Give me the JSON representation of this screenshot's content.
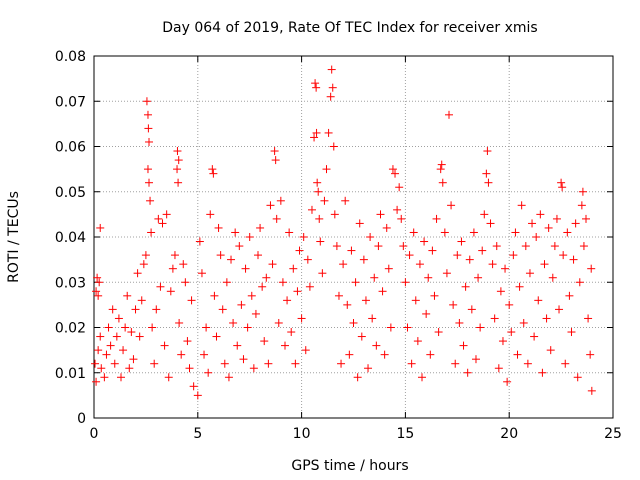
{
  "chart_data": {
    "type": "scatter",
    "title": "Day 064 of 2019, Rate Of TEC Index for receiver xmis",
    "xlabel": "GPS time / hours",
    "ylabel": "ROTI / TECUs",
    "xlim": [
      0,
      25
    ],
    "ylim": [
      0,
      0.08
    ],
    "xticks": [
      0,
      5,
      10,
      15,
      20,
      25
    ],
    "yticks": [
      0,
      0.01,
      0.02,
      0.03,
      0.04,
      0.05,
      0.06,
      0.07,
      0.08
    ],
    "xtick_labels": [
      "0",
      "5",
      "10",
      "15",
      "20",
      "25"
    ],
    "ytick_labels": [
      "0",
      "0.01",
      "0.02",
      "0.03",
      "0.04",
      "0.05",
      "0.06",
      "0.07",
      "0.08"
    ],
    "grid": true,
    "marker": "+",
    "color": "#ff0000",
    "series": [
      {
        "name": "ROTI",
        "points": [
          [
            0.05,
            0.012
          ],
          [
            0.1,
            0.028
          ],
          [
            0.15,
            0.031
          ],
          [
            0.2,
            0.027
          ],
          [
            0.25,
            0.03
          ],
          [
            0.3,
            0.042
          ],
          [
            0.1,
            0.008
          ],
          [
            0.2,
            0.015
          ],
          [
            0.3,
            0.018
          ],
          [
            0.35,
            0.011
          ],
          [
            0.5,
            0.009
          ],
          [
            0.6,
            0.014
          ],
          [
            0.7,
            0.02
          ],
          [
            0.8,
            0.016
          ],
          [
            0.9,
            0.024
          ],
          [
            1.0,
            0.012
          ],
          [
            1.1,
            0.018
          ],
          [
            1.2,
            0.022
          ],
          [
            1.3,
            0.009
          ],
          [
            1.4,
            0.015
          ],
          [
            1.5,
            0.02
          ],
          [
            1.6,
            0.027
          ],
          [
            1.7,
            0.011
          ],
          [
            1.8,
            0.019
          ],
          [
            1.9,
            0.013
          ],
          [
            2.0,
            0.024
          ],
          [
            2.1,
            0.032
          ],
          [
            2.2,
            0.018
          ],
          [
            2.3,
            0.026
          ],
          [
            2.4,
            0.034
          ],
          [
            2.5,
            0.036
          ],
          [
            2.55,
            0.07
          ],
          [
            2.6,
            0.067
          ],
          [
            2.62,
            0.064
          ],
          [
            2.65,
            0.061
          ],
          [
            2.6,
            0.055
          ],
          [
            2.65,
            0.052
          ],
          [
            2.7,
            0.048
          ],
          [
            2.75,
            0.041
          ],
          [
            2.8,
            0.02
          ],
          [
            2.9,
            0.012
          ],
          [
            3.0,
            0.024
          ],
          [
            3.1,
            0.044
          ],
          [
            3.2,
            0.029
          ],
          [
            3.3,
            0.043
          ],
          [
            3.4,
            0.016
          ],
          [
            3.5,
            0.045
          ],
          [
            3.6,
            0.009
          ],
          [
            3.7,
            0.028
          ],
          [
            3.8,
            0.033
          ],
          [
            3.9,
            0.036
          ],
          [
            4.0,
            0.055
          ],
          [
            4.02,
            0.059
          ],
          [
            4.05,
            0.052
          ],
          [
            4.08,
            0.057
          ],
          [
            4.1,
            0.021
          ],
          [
            4.2,
            0.014
          ],
          [
            4.3,
            0.034
          ],
          [
            4.4,
            0.03
          ],
          [
            4.5,
            0.017
          ],
          [
            4.6,
            0.011
          ],
          [
            4.7,
            0.026
          ],
          [
            4.8,
            0.007
          ],
          [
            5.0,
            0.005
          ],
          [
            5.1,
            0.039
          ],
          [
            5.2,
            0.032
          ],
          [
            5.3,
            0.014
          ],
          [
            5.4,
            0.02
          ],
          [
            5.5,
            0.01
          ],
          [
            5.6,
            0.045
          ],
          [
            5.7,
            0.055
          ],
          [
            5.75,
            0.054
          ],
          [
            5.8,
            0.027
          ],
          [
            5.9,
            0.018
          ],
          [
            6.0,
            0.042
          ],
          [
            6.1,
            0.036
          ],
          [
            6.2,
            0.024
          ],
          [
            6.3,
            0.012
          ],
          [
            6.4,
            0.03
          ],
          [
            6.5,
            0.009
          ],
          [
            6.6,
            0.035
          ],
          [
            6.7,
            0.021
          ],
          [
            6.8,
            0.041
          ],
          [
            6.9,
            0.016
          ],
          [
            7.0,
            0.038
          ],
          [
            7.1,
            0.025
          ],
          [
            7.2,
            0.013
          ],
          [
            7.3,
            0.033
          ],
          [
            7.4,
            0.02
          ],
          [
            7.5,
            0.04
          ],
          [
            7.6,
            0.027
          ],
          [
            7.7,
            0.011
          ],
          [
            7.8,
            0.023
          ],
          [
            7.9,
            0.036
          ],
          [
            8.0,
            0.042
          ],
          [
            8.1,
            0.029
          ],
          [
            8.2,
            0.017
          ],
          [
            8.3,
            0.031
          ],
          [
            8.4,
            0.012
          ],
          [
            8.5,
            0.047
          ],
          [
            8.6,
            0.034
          ],
          [
            8.7,
            0.059
          ],
          [
            8.75,
            0.057
          ],
          [
            8.8,
            0.044
          ],
          [
            8.9,
            0.021
          ],
          [
            9.0,
            0.048
          ],
          [
            9.1,
            0.03
          ],
          [
            9.2,
            0.016
          ],
          [
            9.3,
            0.026
          ],
          [
            9.4,
            0.041
          ],
          [
            9.5,
            0.019
          ],
          [
            9.6,
            0.033
          ],
          [
            9.7,
            0.012
          ],
          [
            9.8,
            0.028
          ],
          [
            9.9,
            0.037
          ],
          [
            10.0,
            0.022
          ],
          [
            10.1,
            0.04
          ],
          [
            10.2,
            0.015
          ],
          [
            10.3,
            0.035
          ],
          [
            10.4,
            0.029
          ],
          [
            10.5,
            0.046
          ],
          [
            10.6,
            0.062
          ],
          [
            10.65,
            0.074
          ],
          [
            10.7,
            0.073
          ],
          [
            10.72,
            0.063
          ],
          [
            10.75,
            0.052
          ],
          [
            10.8,
            0.05
          ],
          [
            10.85,
            0.044
          ],
          [
            10.9,
            0.039
          ],
          [
            11.0,
            0.032
          ],
          [
            11.1,
            0.048
          ],
          [
            11.2,
            0.055
          ],
          [
            11.3,
            0.063
          ],
          [
            11.4,
            0.071
          ],
          [
            11.45,
            0.077
          ],
          [
            11.5,
            0.073
          ],
          [
            11.55,
            0.06
          ],
          [
            11.6,
            0.045
          ],
          [
            11.7,
            0.038
          ],
          [
            11.8,
            0.027
          ],
          [
            11.9,
            0.012
          ],
          [
            12.0,
            0.034
          ],
          [
            12.1,
            0.048
          ],
          [
            12.2,
            0.025
          ],
          [
            12.3,
            0.014
          ],
          [
            12.4,
            0.037
          ],
          [
            12.5,
            0.021
          ],
          [
            12.6,
            0.03
          ],
          [
            12.7,
            0.009
          ],
          [
            12.8,
            0.043
          ],
          [
            12.9,
            0.018
          ],
          [
            13.0,
            0.035
          ],
          [
            13.1,
            0.026
          ],
          [
            13.2,
            0.011
          ],
          [
            13.3,
            0.04
          ],
          [
            13.4,
            0.022
          ],
          [
            13.5,
            0.031
          ],
          [
            13.6,
            0.016
          ],
          [
            13.7,
            0.038
          ],
          [
            13.8,
            0.045
          ],
          [
            13.9,
            0.028
          ],
          [
            14.0,
            0.014
          ],
          [
            14.1,
            0.042
          ],
          [
            14.2,
            0.033
          ],
          [
            14.3,
            0.02
          ],
          [
            14.4,
            0.055
          ],
          [
            14.5,
            0.054
          ],
          [
            14.6,
            0.046
          ],
          [
            14.7,
            0.051
          ],
          [
            14.8,
            0.044
          ],
          [
            14.9,
            0.038
          ],
          [
            15.0,
            0.03
          ],
          [
            15.1,
            0.02
          ],
          [
            15.2,
            0.036
          ],
          [
            15.3,
            0.012
          ],
          [
            15.4,
            0.041
          ],
          [
            15.5,
            0.026
          ],
          [
            15.6,
            0.017
          ],
          [
            15.7,
            0.034
          ],
          [
            15.8,
            0.009
          ],
          [
            15.9,
            0.039
          ],
          [
            16.0,
            0.023
          ],
          [
            16.1,
            0.031
          ],
          [
            16.2,
            0.014
          ],
          [
            16.3,
            0.037
          ],
          [
            16.4,
            0.027
          ],
          [
            16.5,
            0.044
          ],
          [
            16.6,
            0.019
          ],
          [
            16.7,
            0.055
          ],
          [
            16.75,
            0.056
          ],
          [
            16.8,
            0.052
          ],
          [
            16.9,
            0.041
          ],
          [
            17.0,
            0.032
          ],
          [
            17.1,
            0.067
          ],
          [
            17.2,
            0.047
          ],
          [
            17.3,
            0.025
          ],
          [
            17.4,
            0.012
          ],
          [
            17.5,
            0.036
          ],
          [
            17.6,
            0.021
          ],
          [
            17.7,
            0.039
          ],
          [
            17.8,
            0.016
          ],
          [
            17.9,
            0.029
          ],
          [
            18.0,
            0.01
          ],
          [
            18.1,
            0.035
          ],
          [
            18.2,
            0.024
          ],
          [
            18.3,
            0.041
          ],
          [
            18.4,
            0.013
          ],
          [
            18.5,
            0.031
          ],
          [
            18.6,
            0.02
          ],
          [
            18.7,
            0.037
          ],
          [
            18.8,
            0.045
          ],
          [
            18.9,
            0.054
          ],
          [
            18.95,
            0.059
          ],
          [
            19.0,
            0.052
          ],
          [
            19.1,
            0.043
          ],
          [
            19.2,
            0.034
          ],
          [
            19.3,
            0.022
          ],
          [
            19.4,
            0.038
          ],
          [
            19.5,
            0.011
          ],
          [
            19.6,
            0.028
          ],
          [
            19.7,
            0.017
          ],
          [
            19.8,
            0.033
          ],
          [
            19.9,
            0.008
          ],
          [
            20.0,
            0.025
          ],
          [
            20.1,
            0.019
          ],
          [
            20.2,
            0.036
          ],
          [
            20.3,
            0.041
          ],
          [
            20.4,
            0.014
          ],
          [
            20.5,
            0.029
          ],
          [
            20.6,
            0.047
          ],
          [
            20.7,
            0.021
          ],
          [
            20.8,
            0.038
          ],
          [
            20.9,
            0.012
          ],
          [
            21.0,
            0.032
          ],
          [
            21.1,
            0.043
          ],
          [
            21.2,
            0.018
          ],
          [
            21.3,
            0.04
          ],
          [
            21.4,
            0.026
          ],
          [
            21.5,
            0.045
          ],
          [
            21.6,
            0.01
          ],
          [
            21.7,
            0.034
          ],
          [
            21.8,
            0.022
          ],
          [
            21.9,
            0.042
          ],
          [
            22.0,
            0.015
          ],
          [
            22.1,
            0.031
          ],
          [
            22.2,
            0.038
          ],
          [
            22.3,
            0.044
          ],
          [
            22.4,
            0.024
          ],
          [
            22.5,
            0.052
          ],
          [
            22.55,
            0.051
          ],
          [
            22.6,
            0.036
          ],
          [
            22.7,
            0.012
          ],
          [
            22.8,
            0.041
          ],
          [
            22.9,
            0.027
          ],
          [
            23.0,
            0.019
          ],
          [
            23.1,
            0.035
          ],
          [
            23.2,
            0.043
          ],
          [
            23.3,
            0.009
          ],
          [
            23.4,
            0.03
          ],
          [
            23.5,
            0.047
          ],
          [
            23.55,
            0.05
          ],
          [
            23.6,
            0.038
          ],
          [
            23.7,
            0.044
          ],
          [
            23.8,
            0.022
          ],
          [
            23.9,
            0.014
          ],
          [
            23.95,
            0.033
          ],
          [
            23.98,
            0.006
          ]
        ]
      }
    ]
  }
}
